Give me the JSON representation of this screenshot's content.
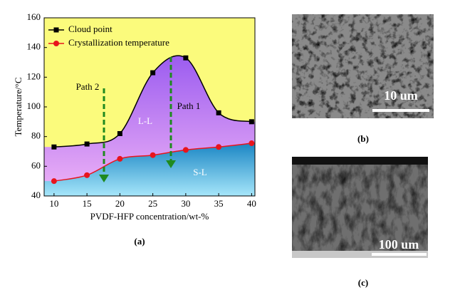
{
  "chart_data": {
    "type": "line",
    "x_label": "PVDF-HFP concentration/wt-%",
    "y_label": "Temperature/°C",
    "x": [
      10,
      15,
      20,
      25,
      30,
      35,
      40
    ],
    "series": [
      {
        "name": "Cloud point",
        "color": "#000000",
        "values": [
          73,
          75,
          82,
          123,
          133,
          96,
          90
        ]
      },
      {
        "name": "Crystallization temperature",
        "color": "#e8141c",
        "values": [
          50,
          54,
          65,
          67.5,
          71,
          73,
          75.5
        ]
      }
    ],
    "xlim": [
      8.5,
      40.5
    ],
    "xticks": [
      10,
      15,
      20,
      25,
      30,
      35,
      40
    ],
    "ylim": [
      40,
      160
    ],
    "yticks": [
      40,
      60,
      80,
      100,
      120,
      140,
      160
    ],
    "annotations": {
      "path2": "Path 2",
      "path1": "Path 1",
      "ll": "L-L",
      "sl": "S-L"
    },
    "label": "(a)"
  },
  "panels": {
    "b": {
      "label": "(b)",
      "scale": "10 um"
    },
    "c": {
      "label": "(c)",
      "scale": "100 um"
    }
  }
}
